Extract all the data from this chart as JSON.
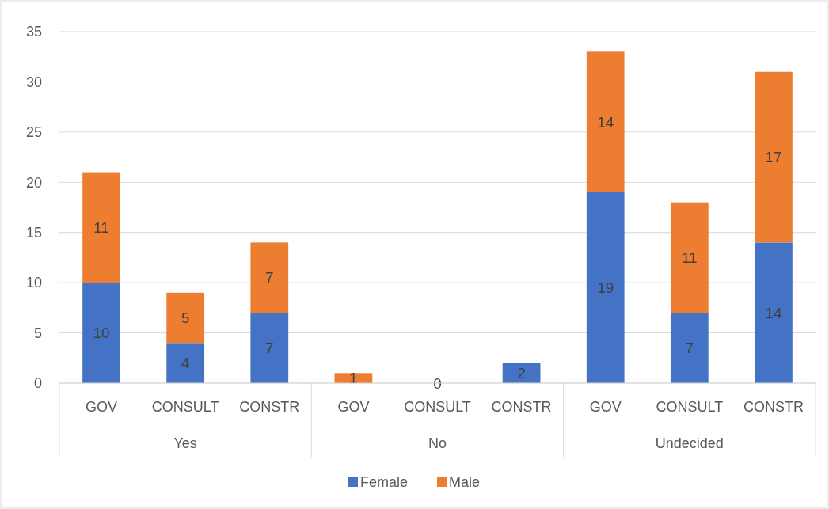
{
  "chart_data": {
    "type": "bar",
    "stacked": true,
    "categories": [
      "GOV",
      "CONSULT",
      "CONSTR",
      "GOV",
      "CONSULT",
      "CONSTR",
      "GOV",
      "CONSULT",
      "CONSTR"
    ],
    "annotations": [
      "Yes",
      "No",
      "Undecided"
    ],
    "series": [
      {
        "name": "Female",
        "color": "#4472c4",
        "values": [
          10,
          4,
          7,
          0,
          0,
          2,
          19,
          7,
          14
        ],
        "value_labels": [
          "10",
          "4",
          "7",
          null,
          "0",
          "2",
          "19",
          "7",
          "14"
        ]
      },
      {
        "name": "Male",
        "color": "#ed7d31",
        "values": [
          11,
          5,
          7,
          1,
          0,
          0,
          14,
          11,
          17
        ],
        "value_labels": [
          "11",
          "5",
          "7",
          "1",
          null,
          null,
          "14",
          "11",
          "17"
        ]
      }
    ],
    "ylim": [
      0,
      35
    ],
    "yticks": [
      0,
      5,
      10,
      15,
      20,
      25,
      30,
      35
    ],
    "grid": "y",
    "legend": "bottom"
  }
}
